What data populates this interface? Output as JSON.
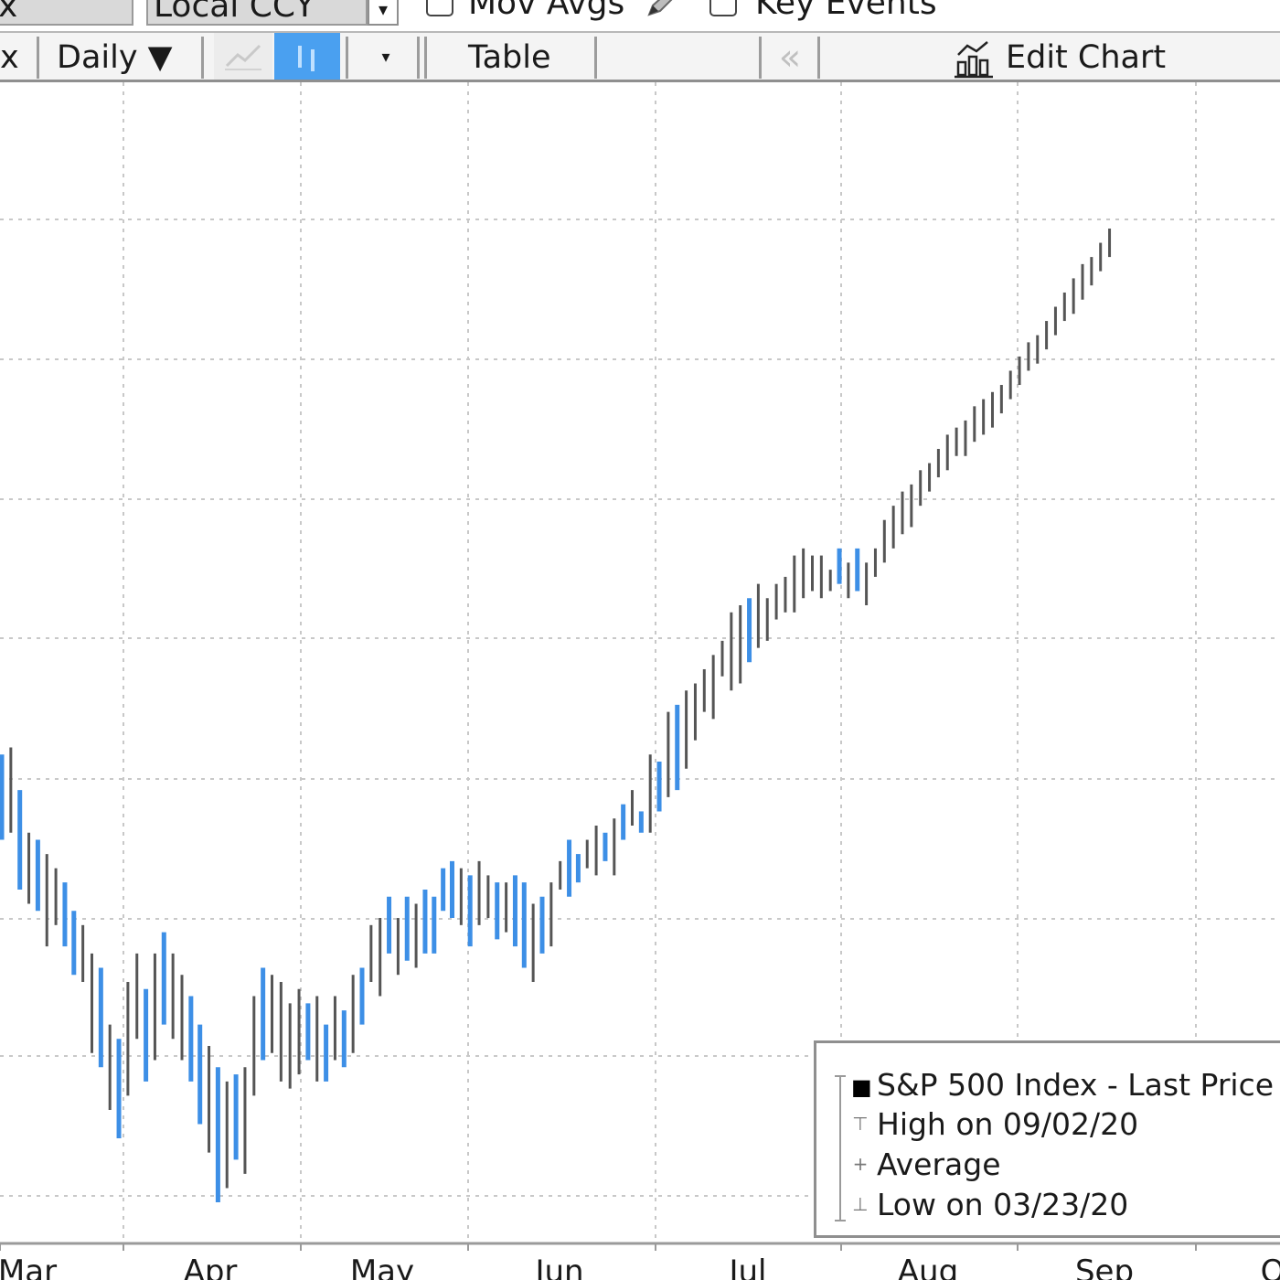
{
  "controls": {
    "field_partial": "x",
    "currency": "Local CCY",
    "currency_dropdown_arrow": "▾",
    "mov_avgs_label": "Mov Avgs",
    "mov_avgs_checked": false,
    "key_events_label": "Key Events",
    "key_events_checked": false
  },
  "toolbar": {
    "partial_label": "x",
    "frequency": "Daily ▼",
    "style_dropdown_arrow": "▾",
    "table_label": "Table",
    "collapse_label": "«",
    "edit_chart_label": "Edit Chart"
  },
  "legend": {
    "items": [
      {
        "label": "S&P 500 Index - Last Price",
        "symbol": "■"
      },
      {
        "label": "High on 09/02/20",
        "symbol": "⊤"
      },
      {
        "label": "Average",
        "symbol": "+"
      },
      {
        "label": "Low on 03/23/20",
        "symbol": "⊥"
      }
    ]
  },
  "colors": {
    "up": "#555555",
    "down": "#3d8fe6",
    "grid": "#c8c8c8"
  },
  "chart_data": {
    "type": "ohlc",
    "x_tick_labels": [
      "Mar",
      "Apr",
      "May",
      "Jun",
      "Jul",
      "Aug",
      "Sep",
      "O"
    ],
    "grid": true,
    "legend_position": "bottom-right",
    "series": [
      {
        "name": "S&P 500 Index - Last Price",
        "bars": [
          {
            "x": 0,
            "h": 0.32,
            "l": 0.44,
            "d": true
          },
          {
            "x": 1,
            "h": 0.31,
            "l": 0.43,
            "d": false
          },
          {
            "x": 2,
            "h": 0.37,
            "l": 0.51,
            "d": true
          },
          {
            "x": 3,
            "h": 0.43,
            "l": 0.53,
            "d": false
          },
          {
            "x": 4,
            "h": 0.44,
            "l": 0.54,
            "d": true
          },
          {
            "x": 5,
            "h": 0.46,
            "l": 0.59,
            "d": false
          },
          {
            "x": 6,
            "h": 0.48,
            "l": 0.56,
            "d": false
          },
          {
            "x": 7,
            "h": 0.5,
            "l": 0.59,
            "d": true
          },
          {
            "x": 8,
            "h": 0.54,
            "l": 0.63,
            "d": true
          },
          {
            "x": 9,
            "h": 0.56,
            "l": 0.64,
            "d": false
          },
          {
            "x": 10,
            "h": 0.6,
            "l": 0.74,
            "d": false
          },
          {
            "x": 11,
            "h": 0.62,
            "l": 0.76,
            "d": true
          },
          {
            "x": 12,
            "h": 0.7,
            "l": 0.82,
            "d": false
          },
          {
            "x": 13,
            "h": 0.72,
            "l": 0.86,
            "d": true
          },
          {
            "x": 14,
            "h": 0.64,
            "l": 0.8,
            "d": false
          },
          {
            "x": 15,
            "h": 0.6,
            "l": 0.72,
            "d": false
          },
          {
            "x": 16,
            "h": 0.65,
            "l": 0.78,
            "d": true
          },
          {
            "x": 17,
            "h": 0.6,
            "l": 0.75,
            "d": false
          },
          {
            "x": 18,
            "h": 0.57,
            "l": 0.7,
            "d": true
          },
          {
            "x": 19,
            "h": 0.6,
            "l": 0.72,
            "d": false
          },
          {
            "x": 20,
            "h": 0.63,
            "l": 0.75,
            "d": false
          },
          {
            "x": 21,
            "h": 0.66,
            "l": 0.78,
            "d": true
          },
          {
            "x": 22,
            "h": 0.7,
            "l": 0.84,
            "d": true
          },
          {
            "x": 23,
            "h": 0.73,
            "l": 0.88,
            "d": false
          },
          {
            "x": 24,
            "h": 0.76,
            "l": 0.95,
            "d": true
          },
          {
            "x": 25,
            "h": 0.78,
            "l": 0.93,
            "d": false
          },
          {
            "x": 26,
            "h": 0.77,
            "l": 0.89,
            "d": true
          },
          {
            "x": 27,
            "h": 0.76,
            "l": 0.91,
            "d": false
          },
          {
            "x": 28,
            "h": 0.66,
            "l": 0.8,
            "d": false
          },
          {
            "x": 29,
            "h": 0.62,
            "l": 0.75,
            "d": true
          },
          {
            "x": 30,
            "h": 0.63,
            "l": 0.74,
            "d": false
          },
          {
            "x": 31,
            "h": 0.64,
            "l": 0.78,
            "d": false
          },
          {
            "x": 32,
            "h": 0.67,
            "l": 0.79,
            "d": false
          },
          {
            "x": 33,
            "h": 0.65,
            "l": 0.77,
            "d": false
          },
          {
            "x": 34,
            "h": 0.67,
            "l": 0.75,
            "d": true
          },
          {
            "x": 35,
            "h": 0.66,
            "l": 0.78,
            "d": false
          },
          {
            "x": 36,
            "h": 0.7,
            "l": 0.78,
            "d": true
          },
          {
            "x": 37,
            "h": 0.66,
            "l": 0.75,
            "d": false
          },
          {
            "x": 38,
            "h": 0.68,
            "l": 0.76,
            "d": true
          },
          {
            "x": 39,
            "h": 0.63,
            "l": 0.74,
            "d": false
          },
          {
            "x": 40,
            "h": 0.62,
            "l": 0.7,
            "d": true
          },
          {
            "x": 41,
            "h": 0.56,
            "l": 0.64,
            "d": false
          },
          {
            "x": 42,
            "h": 0.55,
            "l": 0.66,
            "d": false
          },
          {
            "x": 43,
            "h": 0.52,
            "l": 0.6,
            "d": true
          },
          {
            "x": 44,
            "h": 0.55,
            "l": 0.63,
            "d": false
          },
          {
            "x": 45,
            "h": 0.52,
            "l": 0.61,
            "d": true
          },
          {
            "x": 46,
            "h": 0.53,
            "l": 0.62,
            "d": false
          },
          {
            "x": 47,
            "h": 0.51,
            "l": 0.6,
            "d": true
          },
          {
            "x": 48,
            "h": 0.52,
            "l": 0.6,
            "d": true
          },
          {
            "x": 49,
            "h": 0.48,
            "l": 0.54,
            "d": true
          },
          {
            "x": 50,
            "h": 0.47,
            "l": 0.55,
            "d": true
          },
          {
            "x": 51,
            "h": 0.48,
            "l": 0.56,
            "d": false
          },
          {
            "x": 52,
            "h": 0.49,
            "l": 0.59,
            "d": true
          },
          {
            "x": 53,
            "h": 0.47,
            "l": 0.56,
            "d": false
          },
          {
            "x": 54,
            "h": 0.49,
            "l": 0.55,
            "d": false
          },
          {
            "x": 55,
            "h": 0.5,
            "l": 0.58,
            "d": true
          },
          {
            "x": 56,
            "h": 0.5,
            "l": 0.57,
            "d": false
          },
          {
            "x": 57,
            "h": 0.49,
            "l": 0.59,
            "d": true
          },
          {
            "x": 58,
            "h": 0.5,
            "l": 0.62,
            "d": true
          },
          {
            "x": 59,
            "h": 0.53,
            "l": 0.64,
            "d": false
          },
          {
            "x": 60,
            "h": 0.52,
            "l": 0.6,
            "d": true
          },
          {
            "x": 61,
            "h": 0.5,
            "l": 0.59,
            "d": false
          },
          {
            "x": 62,
            "h": 0.47,
            "l": 0.51,
            "d": false
          },
          {
            "x": 63,
            "h": 0.44,
            "l": 0.52,
            "d": true
          },
          {
            "x": 64,
            "h": 0.46,
            "l": 0.5,
            "d": true
          },
          {
            "x": 65,
            "h": 0.44,
            "l": 0.48,
            "d": false
          },
          {
            "x": 66,
            "h": 0.42,
            "l": 0.49,
            "d": false
          },
          {
            "x": 67,
            "h": 0.43,
            "l": 0.47,
            "d": true
          },
          {
            "x": 68,
            "h": 0.41,
            "l": 0.49,
            "d": false
          },
          {
            "x": 69,
            "h": 0.39,
            "l": 0.44,
            "d": true
          },
          {
            "x": 70,
            "h": 0.37,
            "l": 0.42,
            "d": false
          },
          {
            "x": 71,
            "h": 0.4,
            "l": 0.43,
            "d": true
          },
          {
            "x": 72,
            "h": 0.32,
            "l": 0.43,
            "d": false
          },
          {
            "x": 73,
            "h": 0.33,
            "l": 0.4,
            "d": true
          },
          {
            "x": 74,
            "h": 0.26,
            "l": 0.38,
            "d": false
          },
          {
            "x": 75,
            "h": 0.25,
            "l": 0.37,
            "d": true
          },
          {
            "x": 76,
            "h": 0.23,
            "l": 0.34,
            "d": false
          },
          {
            "x": 77,
            "h": 0.22,
            "l": 0.3,
            "d": false
          },
          {
            "x": 78,
            "h": 0.2,
            "l": 0.26,
            "d": false
          },
          {
            "x": 79,
            "h": 0.18,
            "l": 0.27,
            "d": false
          },
          {
            "x": 80,
            "h": 0.16,
            "l": 0.21,
            "d": false
          },
          {
            "x": 81,
            "h": 0.12,
            "l": 0.23,
            "d": false
          },
          {
            "x": 82,
            "h": 0.11,
            "l": 0.22,
            "d": false
          },
          {
            "x": 83,
            "h": 0.1,
            "l": 0.19,
            "d": true
          },
          {
            "x": 84,
            "h": 0.08,
            "l": 0.17,
            "d": false
          },
          {
            "x": 85,
            "h": 0.1,
            "l": 0.16,
            "d": false
          },
          {
            "x": 86,
            "h": 0.08,
            "l": 0.13,
            "d": false
          },
          {
            "x": 87,
            "h": 0.07,
            "l": 0.12,
            "d": false
          },
          {
            "x": 88,
            "h": 0.04,
            "l": 0.12,
            "d": false
          },
          {
            "x": 89,
            "h": 0.03,
            "l": 0.1,
            "d": false
          },
          {
            "x": 90,
            "h": 0.04,
            "l": 0.09,
            "d": false
          },
          {
            "x": 91,
            "h": 0.04,
            "l": 0.1,
            "d": false
          },
          {
            "x": 92,
            "h": 0.06,
            "l": 0.09,
            "d": false
          },
          {
            "x": 93,
            "h": 0.03,
            "l": 0.08,
            "d": true
          },
          {
            "x": 94,
            "h": 0.05,
            "l": 0.1,
            "d": false
          },
          {
            "x": 95,
            "h": 0.03,
            "l": 0.09,
            "d": true
          },
          {
            "x": 96,
            "h": 0.05,
            "l": 0.11,
            "d": false
          },
          {
            "x": 97,
            "h": 0.03,
            "l": 0.07,
            "d": false
          },
          {
            "x": 98,
            "h": -0.01,
            "l": 0.05,
            "d": false
          },
          {
            "x": 99,
            "h": -0.03,
            "l": 0.03,
            "d": false
          },
          {
            "x": 100,
            "h": -0.05,
            "l": 0.01,
            "d": false
          },
          {
            "x": 101,
            "h": -0.06,
            "l": 0.0,
            "d": false
          },
          {
            "x": 102,
            "h": -0.08,
            "l": -0.03,
            "d": false
          },
          {
            "x": 103,
            "h": -0.09,
            "l": -0.05,
            "d": false
          },
          {
            "x": 104,
            "h": -0.11,
            "l": -0.07,
            "d": false
          },
          {
            "x": 105,
            "h": -0.13,
            "l": -0.08,
            "d": false
          },
          {
            "x": 106,
            "h": -0.14,
            "l": -0.1,
            "d": false
          },
          {
            "x": 107,
            "h": -0.15,
            "l": -0.1,
            "d": false
          },
          {
            "x": 108,
            "h": -0.17,
            "l": -0.12,
            "d": false
          },
          {
            "x": 109,
            "h": -0.18,
            "l": -0.13,
            "d": false
          },
          {
            "x": 110,
            "h": -0.19,
            "l": -0.14,
            "d": false
          },
          {
            "x": 111,
            "h": -0.2,
            "l": -0.16,
            "d": false
          },
          {
            "x": 112,
            "h": -0.22,
            "l": -0.18,
            "d": false
          },
          {
            "x": 113,
            "h": -0.24,
            "l": -0.2,
            "d": false
          },
          {
            "x": 114,
            "h": -0.26,
            "l": -0.22,
            "d": false
          },
          {
            "x": 115,
            "h": -0.27,
            "l": -0.23,
            "d": false
          },
          {
            "x": 116,
            "h": -0.29,
            "l": -0.25,
            "d": false
          },
          {
            "x": 117,
            "h": -0.31,
            "l": -0.27,
            "d": false
          },
          {
            "x": 118,
            "h": -0.33,
            "l": -0.29,
            "d": false
          },
          {
            "x": 119,
            "h": -0.35,
            "l": -0.3,
            "d": false
          },
          {
            "x": 120,
            "h": -0.37,
            "l": -0.32,
            "d": false
          },
          {
            "x": 121,
            "h": -0.38,
            "l": -0.34,
            "d": false
          },
          {
            "x": 122,
            "h": -0.4,
            "l": -0.36,
            "d": false
          },
          {
            "x": 123,
            "h": -0.42,
            "l": -0.38,
            "d": false
          }
        ]
      }
    ]
  }
}
